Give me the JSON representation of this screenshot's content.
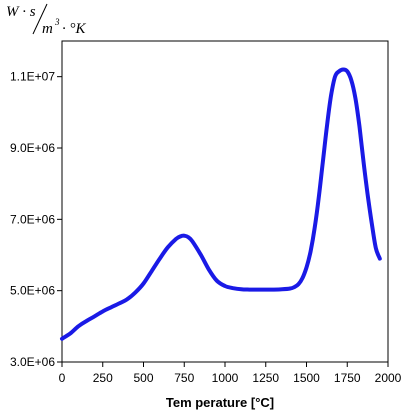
{
  "chart_data": {
    "type": "line",
    "title": "",
    "xlabel": "Tem perature [°C]",
    "ylabel_unit": {
      "numerator": "W · s",
      "denominator": "m",
      "denominator_exponent": "3",
      "denominator_rest": "· °K"
    },
    "xlim": [
      0,
      2000
    ],
    "ylim": [
      3000000,
      12000000
    ],
    "x_ticks": [
      0,
      250,
      500,
      750,
      1000,
      1250,
      1500,
      1750,
      2000
    ],
    "x_tick_labels": [
      "0",
      "250",
      "500",
      "750",
      "1000",
      "1250",
      "1500",
      "1750",
      "2000"
    ],
    "y_ticks": [
      3000000,
      5000000,
      7000000,
      9000000,
      11000000
    ],
    "y_tick_labels": [
      "3.0E+06",
      "5.0E+06",
      "7.0E+06",
      "9.0E+06",
      "1.1E+07"
    ],
    "grid": false,
    "legend": "none",
    "series": [
      {
        "color": "#1a1ae6",
        "x": [
          0,
          50,
          100,
          150,
          200,
          250,
          300,
          350,
          400,
          450,
          500,
          550,
          600,
          650,
          700,
          725,
          750,
          775,
          800,
          850,
          900,
          950,
          1000,
          1050,
          1100,
          1150,
          1200,
          1250,
          1300,
          1350,
          1400,
          1425,
          1450,
          1475,
          1500,
          1525,
          1550,
          1575,
          1600,
          1625,
          1650,
          1675,
          1700,
          1725,
          1750,
          1775,
          1800,
          1825,
          1850,
          1875,
          1900,
          1925,
          1950
        ],
        "y": [
          3650000,
          3800000,
          4000000,
          4150000,
          4280000,
          4420000,
          4530000,
          4640000,
          4760000,
          4950000,
          5200000,
          5550000,
          5900000,
          6220000,
          6450000,
          6520000,
          6540000,
          6500000,
          6380000,
          6020000,
          5600000,
          5280000,
          5130000,
          5070000,
          5040000,
          5030000,
          5030000,
          5030000,
          5030000,
          5040000,
          5060000,
          5100000,
          5180000,
          5350000,
          5650000,
          6100000,
          6750000,
          7600000,
          8600000,
          9600000,
          10450000,
          11000000,
          11150000,
          11200000,
          11150000,
          10900000,
          10400000,
          9600000,
          8600000,
          7700000,
          6900000,
          6200000,
          5900000
        ]
      }
    ]
  }
}
